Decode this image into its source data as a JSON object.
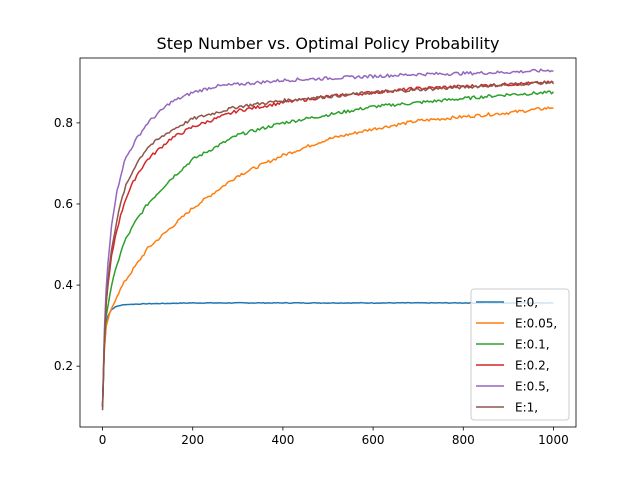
{
  "chart_data": {
    "type": "line",
    "title": "Step Number vs. Optimal Policy Probability",
    "xlabel": "",
    "ylabel": "",
    "xlim": [
      -50,
      1050
    ],
    "ylim": [
      0.05,
      0.96
    ],
    "x_ticks": [
      0,
      200,
      400,
      600,
      800,
      1000
    ],
    "x_tick_labels": [
      "0",
      "200",
      "400",
      "600",
      "800",
      "1000"
    ],
    "y_ticks": [
      0.2,
      0.4,
      0.6,
      0.8
    ],
    "y_tick_labels": [
      "0.2",
      "0.4",
      "0.6",
      "0.8"
    ],
    "grid": false,
    "legend_position": "lower-right",
    "x": [
      0,
      5,
      10,
      20,
      30,
      40,
      50,
      75,
      100,
      150,
      200,
      250,
      300,
      400,
      500,
      600,
      700,
      800,
      900,
      1000
    ],
    "series": [
      {
        "name": "E:0,",
        "color": "#1f77b4",
        "values": [
          0.1,
          0.28,
          0.32,
          0.34,
          0.347,
          0.35,
          0.352,
          0.353,
          0.354,
          0.355,
          0.356,
          0.356,
          0.356,
          0.356,
          0.356,
          0.356,
          0.356,
          0.356,
          0.356,
          0.356
        ]
      },
      {
        "name": "E:0.05,",
        "color": "#ff7f0e",
        "values": [
          0.1,
          0.27,
          0.31,
          0.34,
          0.37,
          0.39,
          0.41,
          0.45,
          0.49,
          0.54,
          0.59,
          0.63,
          0.67,
          0.72,
          0.76,
          0.785,
          0.805,
          0.815,
          0.825,
          0.838
        ]
      },
      {
        "name": "E:0.1,",
        "color": "#2ca02c",
        "values": [
          0.1,
          0.29,
          0.34,
          0.4,
          0.44,
          0.48,
          0.51,
          0.56,
          0.6,
          0.66,
          0.71,
          0.74,
          0.77,
          0.8,
          0.82,
          0.84,
          0.85,
          0.86,
          0.87,
          0.875
        ]
      },
      {
        "name": "E:0.2,",
        "color": "#d62728",
        "values": [
          0.1,
          0.31,
          0.38,
          0.47,
          0.53,
          0.57,
          0.61,
          0.67,
          0.71,
          0.76,
          0.79,
          0.81,
          0.83,
          0.85,
          0.865,
          0.875,
          0.885,
          0.89,
          0.895,
          0.9
        ]
      },
      {
        "name": "E:0.5,",
        "color": "#9467bd",
        "values": [
          0.1,
          0.33,
          0.43,
          0.55,
          0.62,
          0.67,
          0.71,
          0.76,
          0.8,
          0.85,
          0.875,
          0.89,
          0.895,
          0.905,
          0.91,
          0.915,
          0.92,
          0.922,
          0.925,
          0.93
        ]
      },
      {
        "name": "E:1,",
        "color": "#8c564b",
        "values": [
          0.09,
          0.3,
          0.39,
          0.49,
          0.55,
          0.6,
          0.64,
          0.7,
          0.74,
          0.78,
          0.81,
          0.825,
          0.84,
          0.855,
          0.865,
          0.875,
          0.882,
          0.888,
          0.895,
          0.9
        ]
      }
    ]
  }
}
